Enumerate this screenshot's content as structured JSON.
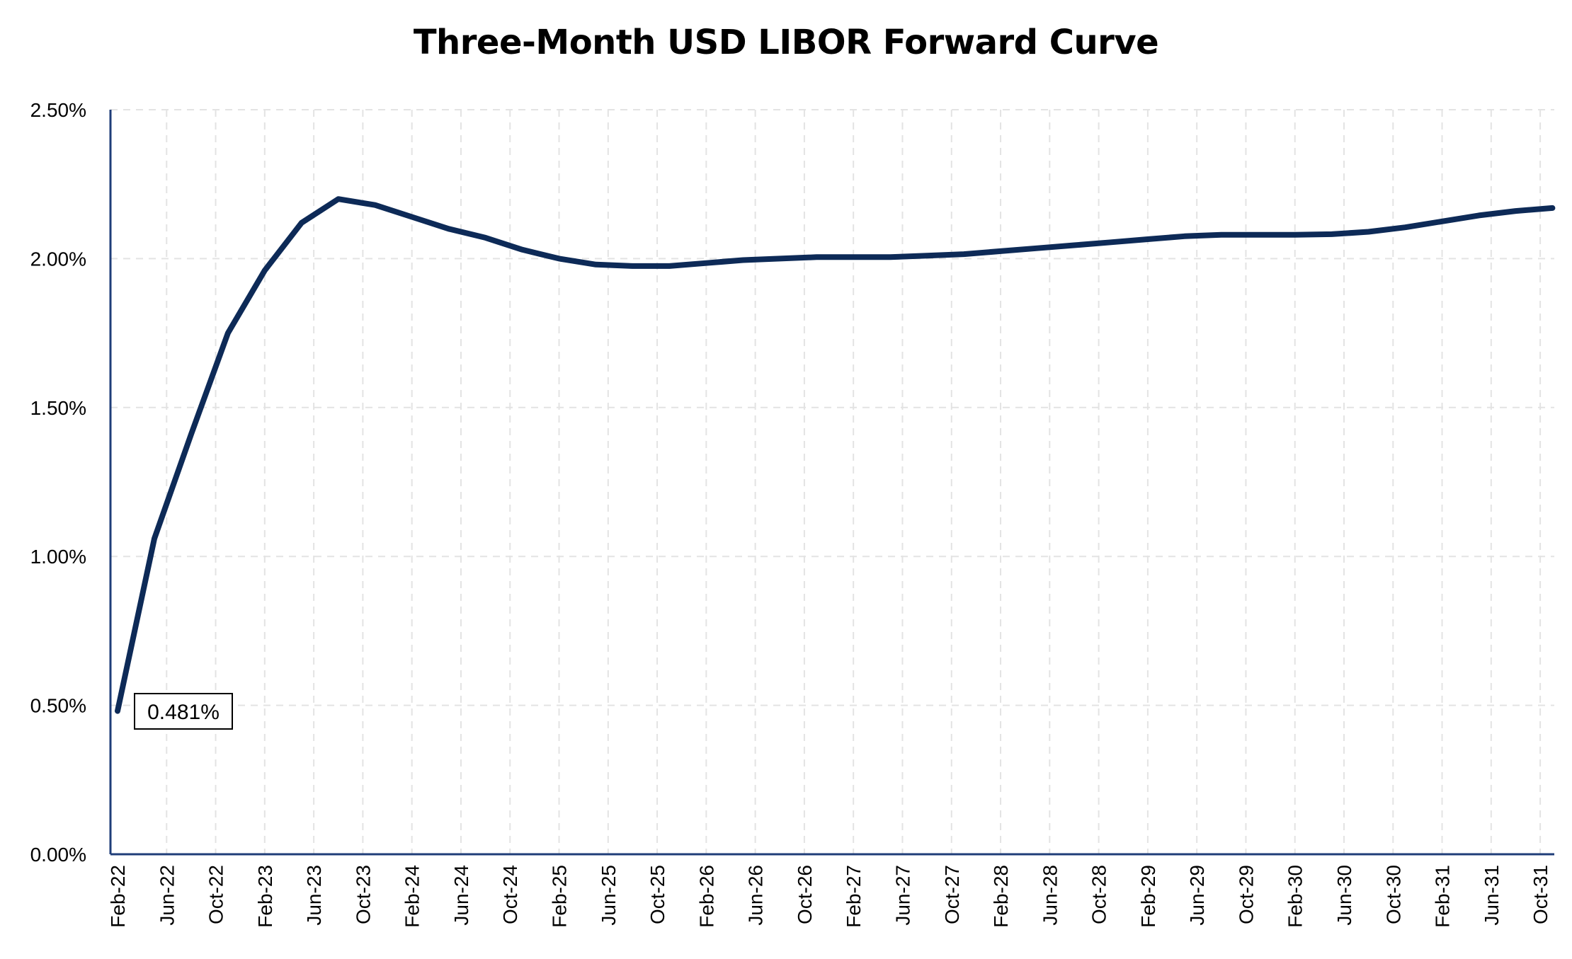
{
  "title": "Three-Month USD LIBOR Forward Curve",
  "colors": {
    "series_line": "#0d2a57",
    "axis": "#1f3d78",
    "grid": "#e3e3e3",
    "text": "#000000"
  },
  "chart_data": {
    "type": "line",
    "title": "Three-Month USD LIBOR Forward Curve",
    "xlabel": "",
    "ylabel": "",
    "ylim": [
      0,
      2.5
    ],
    "y_unit": "%",
    "y_ticks": [
      "0.00%",
      "0.50%",
      "1.00%",
      "1.50%",
      "2.00%",
      "2.50%"
    ],
    "x_tick_labels": [
      "Feb-22",
      "Jun-22",
      "Oct-22",
      "Feb-23",
      "Jun-23",
      "Oct-23",
      "Feb-24",
      "Jun-24",
      "Oct-24",
      "Feb-25",
      "Jun-25",
      "Oct-25",
      "Feb-26",
      "Jun-26",
      "Oct-26",
      "Feb-27",
      "Jun-27",
      "Oct-27",
      "Feb-28",
      "Jun-28",
      "Oct-28",
      "Feb-29",
      "Jun-29",
      "Oct-29",
      "Feb-30",
      "Jun-30",
      "Oct-30",
      "Feb-31",
      "Jun-31",
      "Oct-31"
    ],
    "x_tick_months": [
      0,
      4,
      8,
      12,
      16,
      20,
      24,
      28,
      32,
      36,
      40,
      44,
      48,
      52,
      56,
      60,
      64,
      68,
      72,
      76,
      80,
      84,
      88,
      92,
      96,
      100,
      104,
      108,
      112,
      116
    ],
    "x_range_months": [
      0,
      118
    ],
    "grid": true,
    "legend": "none",
    "series": [
      {
        "x_months": [
          0,
          3,
          6,
          9,
          12,
          15,
          18,
          21,
          24,
          27,
          30,
          33,
          36,
          39,
          42,
          45,
          48,
          51,
          54,
          57,
          60,
          63,
          66,
          69,
          72,
          75,
          78,
          81,
          84,
          87,
          90,
          93,
          96,
          99,
          102,
          105,
          108,
          111,
          114,
          117
        ],
        "values": [
          0.481,
          1.06,
          1.41,
          1.75,
          1.96,
          2.12,
          2.2,
          2.18,
          2.14,
          2.1,
          2.07,
          2.03,
          2.0,
          1.98,
          1.975,
          1.975,
          1.985,
          1.995,
          2.0,
          2.005,
          2.005,
          2.005,
          2.01,
          2.015,
          2.025,
          2.035,
          2.045,
          2.055,
          2.065,
          2.075,
          2.08,
          2.08,
          2.08,
          2.082,
          2.09,
          2.105,
          2.125,
          2.145,
          2.16,
          2.17
        ]
      }
    ],
    "annotations": [
      {
        "text": "0.481%",
        "x_month": 0,
        "value": 0.481
      }
    ]
  }
}
